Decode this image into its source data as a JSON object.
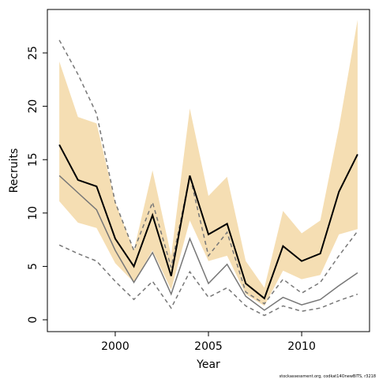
{
  "chart_data": {
    "type": "line",
    "xlabel": "Year",
    "ylabel": "Recruits",
    "footnote": "stockassessment.org, codkat14OnewBITS, r3218",
    "x": [
      1997,
      1998,
      1999,
      2000,
      2001,
      2002,
      2003,
      2004,
      2005,
      2006,
      2007,
      2008,
      2009,
      2010,
      2011,
      2012,
      2013
    ],
    "xlim": [
      1996.36,
      2013.64
    ],
    "xticks": [
      2000,
      2005,
      2010
    ],
    "ylim": [
      -1.11,
      29.07
    ],
    "yticks": [
      0,
      5,
      10,
      15,
      20,
      25
    ],
    "band": {
      "color": "#f5deb3",
      "upper": [
        24.2,
        19.0,
        18.4,
        11.0,
        6.5,
        14.0,
        6.0,
        19.8,
        11.6,
        13.4,
        5.5,
        3.0,
        10.2,
        8.1,
        9.3,
        18.0,
        28.1
      ],
      "lower": [
        11.1,
        9.1,
        8.6,
        5.3,
        3.5,
        6.5,
        2.8,
        9.3,
        5.5,
        6.0,
        2.4,
        1.3,
        4.6,
        3.8,
        4.2,
        8.0,
        8.5
      ]
    },
    "series": [
      {
        "color": "#000000",
        "width": 2,
        "dash": "none",
        "values": [
          16.4,
          13.1,
          12.5,
          7.6,
          5.0,
          9.8,
          4.1,
          13.5,
          8.0,
          9.0,
          3.4,
          2.0,
          6.9,
          5.5,
          6.2,
          12.0,
          15.5
        ]
      },
      {
        "color": "#777777",
        "width": 1.5,
        "dash": "none",
        "values": [
          13.5,
          11.9,
          10.3,
          6.5,
          3.5,
          6.3,
          2.4,
          7.6,
          3.4,
          5.2,
          2.2,
          0.9,
          2.1,
          1.4,
          1.9,
          3.2,
          4.4
        ]
      },
      {
        "color": "#777777",
        "width": 1.5,
        "dash": "5,4",
        "values": [
          26.2,
          23.0,
          19.3,
          11.0,
          6.5,
          11.0,
          4.9,
          13.5,
          6.0,
          8.2,
          2.6,
          1.5,
          3.8,
          2.5,
          3.5,
          6.0,
          8.3
        ]
      },
      {
        "color": "#777777",
        "width": 1.5,
        "dash": "5,4",
        "values": [
          7.0,
          6.2,
          5.5,
          3.6,
          1.9,
          3.6,
          1.1,
          4.5,
          2.1,
          3.0,
          1.3,
          0.4,
          1.3,
          0.8,
          1.1,
          1.8,
          2.4
        ]
      }
    ]
  }
}
